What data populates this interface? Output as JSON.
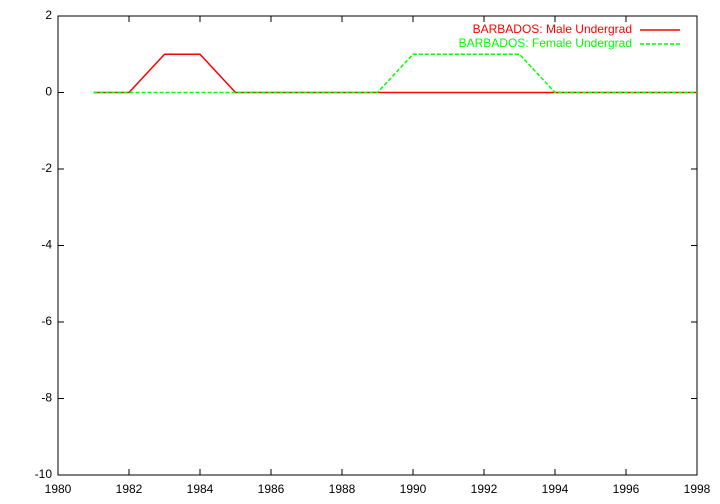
{
  "chart_data": {
    "type": "line",
    "x": [
      1981,
      1982,
      1983,
      1984,
      1985,
      1986,
      1987,
      1988,
      1989,
      1990,
      1991,
      1992,
      1993,
      1994,
      1995,
      1996,
      1997,
      1998
    ],
    "series": [
      {
        "name": "BARBADOS: Male Undergrad",
        "color": "#ff0000",
        "dash": false,
        "values": [
          0,
          0,
          1,
          1,
          0,
          0,
          0,
          0,
          0,
          0,
          0,
          0,
          0,
          0,
          0,
          0,
          0,
          0
        ]
      },
      {
        "name": "BARBADOS: Female Undergrad",
        "color": "#00ff00",
        "dash": true,
        "values": [
          0,
          0,
          0,
          0,
          0,
          0,
          0,
          0,
          0,
          1,
          1,
          1,
          1,
          0,
          0,
          0,
          0,
          0
        ]
      }
    ],
    "xlim": [
      1980,
      1998
    ],
    "xticks": [
      1980,
      1982,
      1984,
      1986,
      1988,
      1990,
      1992,
      1994,
      1996,
      1998
    ],
    "ylim": [
      -10,
      2
    ],
    "yticks": [
      -10,
      -8,
      -6,
      -4,
      -2,
      0,
      2
    ],
    "grid": false,
    "legend": "top-right"
  }
}
